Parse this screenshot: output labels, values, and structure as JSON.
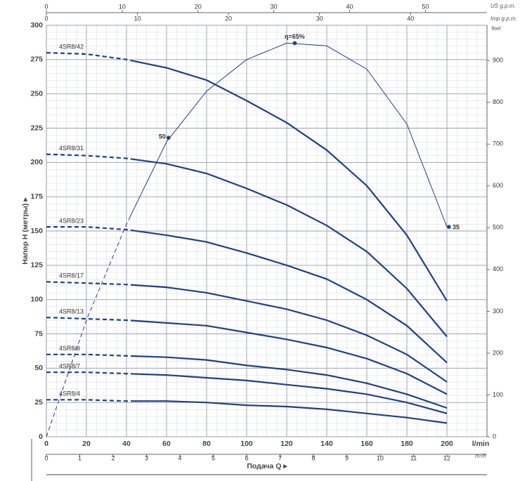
{
  "chart_data": {
    "type": "line",
    "ylabel": "Напор H (метры) ▸",
    "xlabel": "Подача Q ▸",
    "xunit": "l/min",
    "x": [
      0,
      20,
      40,
      60,
      80,
      100,
      120,
      140,
      160,
      180,
      200
    ],
    "xlim": [
      0,
      220
    ],
    "xticks": [
      0,
      20,
      40,
      60,
      80,
      100,
      120,
      140,
      160,
      180,
      200
    ],
    "ylim": [
      0,
      300
    ],
    "yticks": [
      0,
      25,
      50,
      75,
      100,
      125,
      150,
      175,
      200,
      225,
      250,
      275,
      300
    ],
    "grid": true,
    "color": "#1f3f8a",
    "series": [
      {
        "name": "4SR8/42",
        "values": [
          280,
          279,
          275,
          269,
          260,
          245,
          229,
          209,
          183,
          147,
          99
        ]
      },
      {
        "name": "4SR8/31",
        "values": [
          206,
          205,
          203,
          199,
          192,
          181,
          169,
          154,
          135,
          108,
          73
        ]
      },
      {
        "name": "4SR8/23",
        "values": [
          153,
          153,
          151,
          147,
          142,
          134,
          125,
          115,
          100,
          81,
          54
        ]
      },
      {
        "name": "4SR8/17",
        "values": [
          113,
          112,
          111,
          109,
          105,
          99,
          93,
          85,
          74,
          60,
          40
        ]
      },
      {
        "name": "4SR8/13",
        "values": [
          87,
          86,
          85,
          83,
          81,
          76,
          71,
          65,
          57,
          46,
          31
        ]
      },
      {
        "name": "4SR8/9",
        "values": [
          60,
          60,
          59,
          58,
          56,
          52,
          49,
          45,
          39,
          31,
          21
        ]
      },
      {
        "name": "4SR8/7",
        "values": [
          47,
          47,
          46,
          45,
          43,
          41,
          38,
          35,
          31,
          25,
          17
        ]
      },
      {
        "name": "4SR8/4",
        "values": [
          27,
          27,
          26,
          26,
          25,
          23,
          22,
          20,
          17,
          14,
          10
        ]
      }
    ],
    "efficiency": {
      "values": [
        0,
        85,
        155,
        215,
        252,
        275,
        287,
        285,
        268,
        228,
        153
      ],
      "points": [
        {
          "x": 61,
          "y": 218,
          "label": "50"
        },
        {
          "x": 124,
          "y": 287,
          "label": "η=65%"
        },
        {
          "x": 201,
          "y": 153,
          "label": "35"
        }
      ]
    },
    "axes": {
      "m3h": {
        "label": "m³/h",
        "lim": [
          0,
          13.2
        ],
        "ticks": [
          0,
          1,
          2,
          3,
          4,
          5,
          6,
          7,
          8,
          9,
          10,
          11,
          12
        ]
      },
      "us": {
        "label": "US g.p.m.",
        "lim": [
          0,
          58.12
        ],
        "ticks": [
          0,
          10,
          20,
          30,
          40,
          50
        ]
      },
      "imp": {
        "label": "Imp g.p.m.",
        "lim": [
          0,
          48.39
        ],
        "ticks": [
          0,
          10,
          20,
          30,
          40
        ]
      },
      "feet": {
        "label": "feet",
        "lim": [
          0,
          984.25
        ],
        "ticks": [
          0,
          100,
          200,
          300,
          400,
          500,
          600,
          700,
          800,
          900
        ]
      }
    }
  }
}
